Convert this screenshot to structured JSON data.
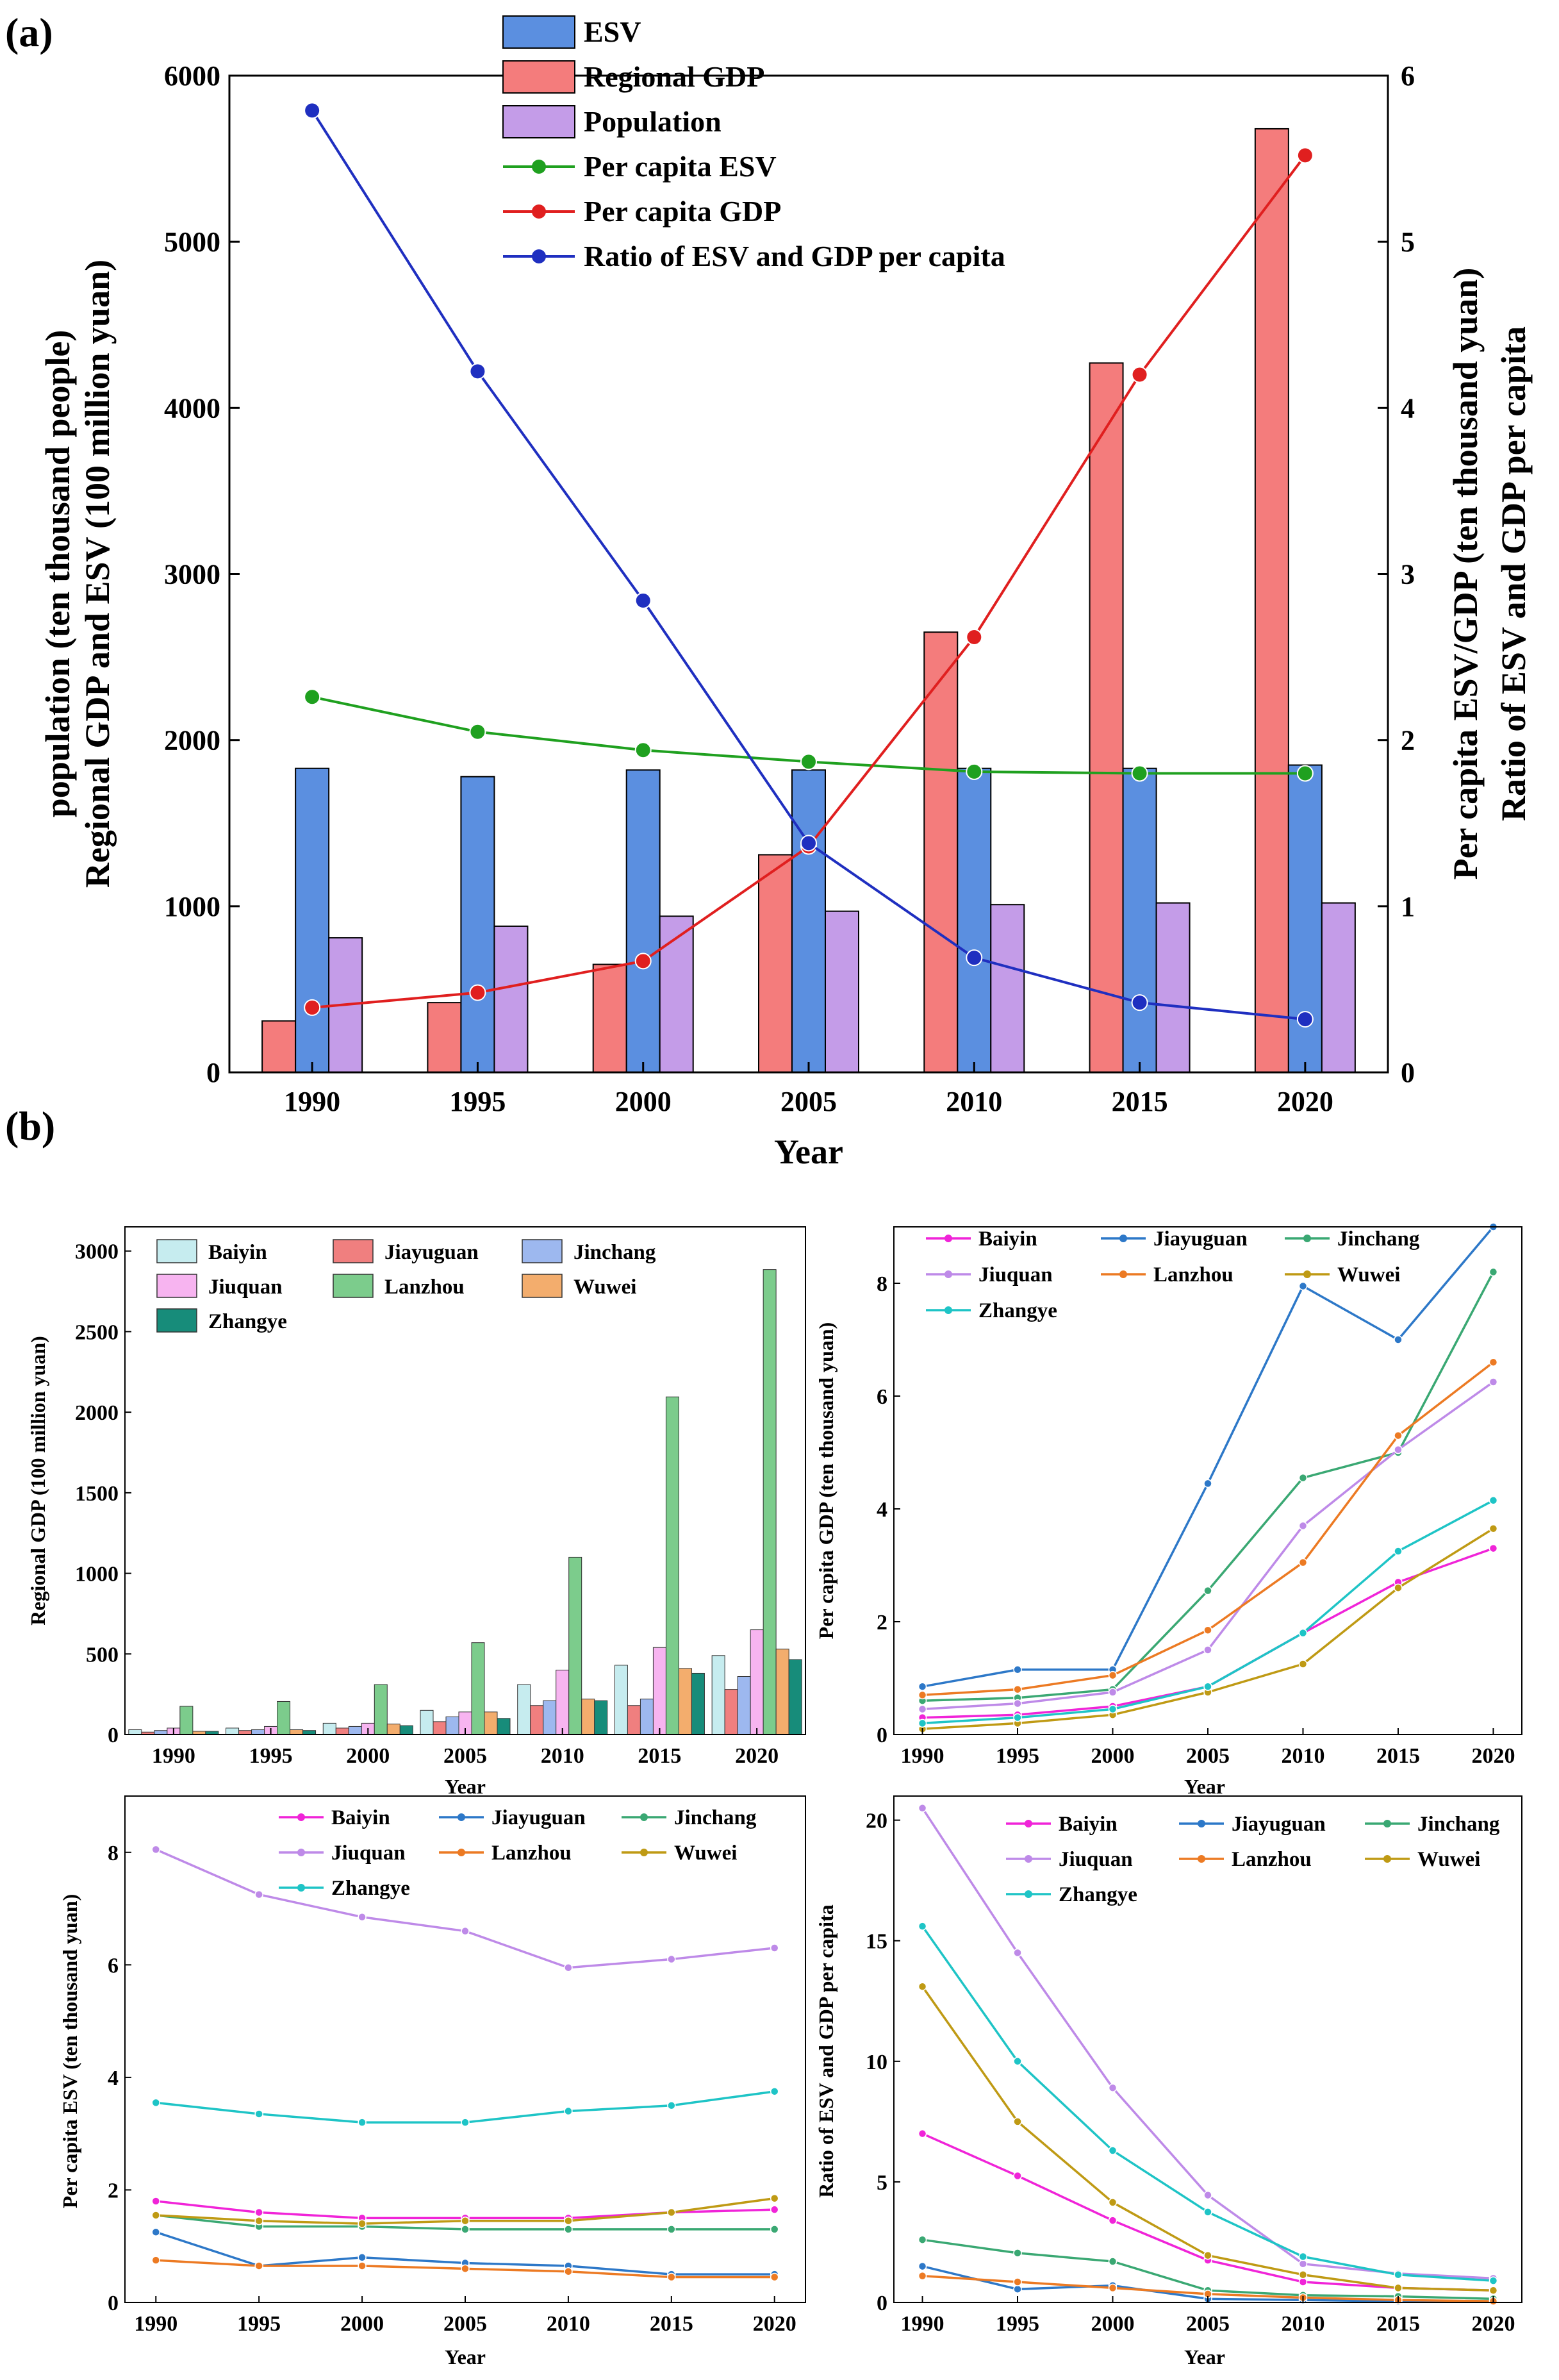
{
  "chart_data": [
    {
      "id": "a",
      "panel_label": "(a)",
      "type": "bar+line",
      "categories": [
        "1990",
        "1995",
        "2000",
        "2005",
        "2010",
        "2015",
        "2020"
      ],
      "xlabel": "Year",
      "ylabel_lines": [
        "population (ten thousand people)",
        "Regional GDP and ESV (100 million yuan)"
      ],
      "y2label_lines": [
        "Per capita ESV/GDP (ten thousand yuan)",
        "Ratio of ESV and GDP per capita"
      ],
      "ylim": [
        0,
        6000
      ],
      "yticks": [
        "0",
        "1000",
        "2000",
        "3000",
        "4000",
        "5000",
        "6000"
      ],
      "y2lim": [
        0,
        6
      ],
      "y2ticks": [
        "0",
        "1",
        "2",
        "3",
        "4",
        "5",
        "6"
      ],
      "bar_series": [
        {
          "name": "Regional GDP",
          "color": "#f47c7c",
          "values": [
            310,
            420,
            650,
            1310,
            2650,
            4270,
            5680
          ]
        },
        {
          "name": "ESV",
          "color": "#5b8fe0",
          "values": [
            1830,
            1780,
            1820,
            1820,
            1830,
            1830,
            1850
          ]
        },
        {
          "name": "Population",
          "color": "#c49ce8",
          "values": [
            810,
            880,
            940,
            970,
            1010,
            1020,
            1020
          ]
        }
      ],
      "line_series": [
        {
          "name": "Per capita ESV",
          "color": "#1fa01f",
          "values": [
            2.26,
            2.05,
            1.94,
            1.87,
            1.81,
            1.8,
            1.8
          ]
        },
        {
          "name": "Per capita GDP",
          "color": "#e01f1f",
          "values": [
            0.39,
            0.48,
            0.67,
            1.36,
            2.62,
            4.2,
            5.52
          ]
        },
        {
          "name": "Ratio of ESV and GDP per capita",
          "color": "#1f2fc0",
          "values": [
            5.79,
            4.22,
            2.84,
            1.38,
            0.69,
            0.42,
            0.32
          ]
        }
      ],
      "legend_order": [
        "ESV",
        "Regional GDP",
        "Population",
        "Per capita ESV",
        "Per capita GDP",
        "Ratio of ESV and GDP per capita"
      ],
      "legend_position": "top-center"
    },
    {
      "id": "b1",
      "panel_label": "(b)",
      "type": "bar",
      "categories": [
        "1990",
        "1995",
        "2000",
        "2005",
        "2010",
        "2015",
        "2020"
      ],
      "xlabel": "Year",
      "ylabel": "Regional GDP (100 million yuan)",
      "ylim": [
        0,
        3150
      ],
      "yticks": [
        "0",
        "500",
        "1000",
        "1500",
        "2000",
        "2500",
        "3000"
      ],
      "series": [
        {
          "name": "Baiyin",
          "color": "#c6ecef",
          "values": [
            30,
            40,
            70,
            150,
            310,
            430,
            490
          ]
        },
        {
          "name": "Jiayuguan",
          "color": "#f07f7f",
          "values": [
            15,
            25,
            40,
            80,
            180,
            180,
            280
          ]
        },
        {
          "name": "Jinchang",
          "color": "#9db8ef",
          "values": [
            25,
            30,
            50,
            110,
            210,
            220,
            360
          ]
        },
        {
          "name": "Jiuquan",
          "color": "#f7b4f0",
          "values": [
            40,
            50,
            70,
            140,
            400,
            540,
            650
          ]
        },
        {
          "name": "Lanzhou",
          "color": "#7ccc8c",
          "values": [
            175,
            205,
            310,
            570,
            1100,
            2095,
            2885
          ]
        },
        {
          "name": "Wuwei",
          "color": "#f3ad6d",
          "values": [
            20,
            30,
            65,
            140,
            220,
            410,
            530
          ]
        },
        {
          "name": "Zhangye",
          "color": "#178c7a",
          "values": [
            20,
            25,
            55,
            100,
            210,
            380,
            465
          ]
        }
      ],
      "legend_position": "top-left"
    },
    {
      "id": "b2",
      "type": "line",
      "x": [
        "1990",
        "1995",
        "2000",
        "2005",
        "2010",
        "2015",
        "2020"
      ],
      "xlabel": "Year",
      "ylabel": "Per capita GDP (ten thousand yuan)",
      "ylim": [
        0,
        9
      ],
      "yticks": [
        "0",
        "2",
        "4",
        "6",
        "8"
      ],
      "series": [
        {
          "name": "Baiyin",
          "color": "#f024d8",
          "values": [
            0.3,
            0.35,
            0.5,
            0.85,
            1.8,
            2.7,
            3.3
          ]
        },
        {
          "name": "Jiayuguan",
          "color": "#2d78c8",
          "values": [
            0.85,
            1.15,
            1.15,
            4.45,
            7.95,
            7.0,
            9.0
          ]
        },
        {
          "name": "Jinchang",
          "color": "#3aa873",
          "values": [
            0.6,
            0.65,
            0.8,
            2.55,
            4.55,
            5.0,
            8.2
          ]
        },
        {
          "name": "Jiuquan",
          "color": "#be8ae8",
          "values": [
            0.45,
            0.55,
            0.75,
            1.5,
            3.7,
            5.05,
            6.25
          ]
        },
        {
          "name": "Lanzhou",
          "color": "#ec7a23",
          "values": [
            0.7,
            0.8,
            1.05,
            1.85,
            3.05,
            5.3,
            6.6
          ]
        },
        {
          "name": "Wuwei",
          "color": "#bf9a14",
          "values": [
            0.1,
            0.2,
            0.35,
            0.75,
            1.25,
            2.6,
            3.65
          ]
        },
        {
          "name": "Zhangye",
          "color": "#1ec4c6",
          "values": [
            0.2,
            0.3,
            0.45,
            0.85,
            1.8,
            3.25,
            4.15
          ]
        }
      ],
      "legend_position": "top-left"
    },
    {
      "id": "b3",
      "type": "line",
      "x": [
        "1990",
        "1995",
        "2000",
        "2005",
        "2010",
        "2015",
        "2020"
      ],
      "xlabel": "Year",
      "ylabel": "Per capita ESV (ten thousand yuan)",
      "ylim": [
        0,
        9
      ],
      "yticks": [
        "0",
        "2",
        "4",
        "6",
        "8"
      ],
      "series": [
        {
          "name": "Baiyin",
          "color": "#f024d8",
          "values": [
            1.8,
            1.6,
            1.5,
            1.5,
            1.5,
            1.6,
            1.65
          ]
        },
        {
          "name": "Jiayuguan",
          "color": "#2d78c8",
          "values": [
            1.25,
            0.65,
            0.8,
            0.7,
            0.65,
            0.5,
            0.5
          ]
        },
        {
          "name": "Jinchang",
          "color": "#3aa873",
          "values": [
            1.55,
            1.35,
            1.35,
            1.3,
            1.3,
            1.3,
            1.3
          ]
        },
        {
          "name": "Jiuquan",
          "color": "#be8ae8",
          "values": [
            8.05,
            7.25,
            6.85,
            6.6,
            5.95,
            6.1,
            6.3
          ]
        },
        {
          "name": "Lanzhou",
          "color": "#ec7a23",
          "values": [
            0.75,
            0.65,
            0.65,
            0.6,
            0.55,
            0.45,
            0.45
          ]
        },
        {
          "name": "Wuwei",
          "color": "#bf9a14",
          "values": [
            1.55,
            1.45,
            1.4,
            1.45,
            1.45,
            1.6,
            1.85
          ]
        },
        {
          "name": "Zhangye",
          "color": "#1ec4c6",
          "values": [
            3.55,
            3.35,
            3.2,
            3.2,
            3.4,
            3.5,
            3.75
          ]
        }
      ],
      "legend_position": "top-center"
    },
    {
      "id": "b4",
      "type": "line",
      "x": [
        "1990",
        "1995",
        "2000",
        "2005",
        "2010",
        "2015",
        "2020"
      ],
      "xlabel": "Year",
      "ylabel": "Ratio of ESV and GDP per capita",
      "ylim": [
        0,
        21
      ],
      "yticks": [
        "0",
        "5",
        "10",
        "15",
        "20"
      ],
      "series": [
        {
          "name": "Baiyin",
          "color": "#f024d8",
          "values": [
            7.0,
            5.25,
            3.4,
            1.75,
            0.85,
            0.6,
            0.5
          ]
        },
        {
          "name": "Jiayuguan",
          "color": "#2d78c8",
          "values": [
            1.5,
            0.55,
            0.7,
            0.15,
            0.1,
            0.05,
            0.05
          ]
        },
        {
          "name": "Jinchang",
          "color": "#3aa873",
          "values": [
            2.6,
            2.05,
            1.7,
            0.5,
            0.3,
            0.25,
            0.15
          ]
        },
        {
          "name": "Jiuquan",
          "color": "#be8ae8",
          "values": [
            20.5,
            14.5,
            8.9,
            4.45,
            1.6,
            1.2,
            1.0
          ]
        },
        {
          "name": "Lanzhou",
          "color": "#ec7a23",
          "values": [
            1.1,
            0.85,
            0.6,
            0.35,
            0.2,
            0.1,
            0.05
          ]
        },
        {
          "name": "Wuwei",
          "color": "#bf9a14",
          "values": [
            13.1,
            7.5,
            4.15,
            1.95,
            1.15,
            0.6,
            0.5
          ]
        },
        {
          "name": "Zhangye",
          "color": "#1ec4c6",
          "values": [
            15.6,
            10.0,
            6.3,
            3.75,
            1.9,
            1.15,
            0.9
          ]
        }
      ],
      "legend_position": "top-right"
    }
  ]
}
